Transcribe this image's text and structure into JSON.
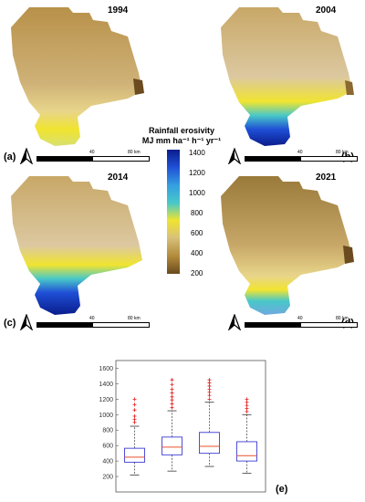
{
  "maps": [
    {
      "panel": "(a)",
      "year": "1994",
      "scale_labels": [
        "40",
        "80 km"
      ]
    },
    {
      "panel": "(b)",
      "year": "2004",
      "scale_labels": [
        "40",
        "80 km"
      ]
    },
    {
      "panel": "(c)",
      "year": "2014",
      "scale_labels": [
        "40",
        "80 km"
      ]
    },
    {
      "panel": "(d)",
      "year": "2021",
      "scale_labels": [
        "40",
        "80 km"
      ]
    }
  ],
  "legend": {
    "title_line1": "Rainfall erosivity",
    "title_line2": "MJ mm ha⁻¹ h⁻¹ yr⁻¹",
    "ticks": [
      "1400",
      "1200",
      "1000",
      "800",
      "600",
      "400",
      "200"
    ],
    "colors": [
      "#0a1c8c",
      "#1f4fd6",
      "#35a0e0",
      "#48c8c8",
      "#f0e430",
      "#d8c07a",
      "#b08a3a",
      "#6a4a1e"
    ]
  },
  "chart_data": {
    "type": "boxplot",
    "panel": "(e)",
    "ylim": [
      0,
      1700
    ],
    "yticks": [
      200,
      400,
      600,
      800,
      1000,
      1200,
      1400,
      1600
    ],
    "box_color": "#3b3bd6",
    "median_color": "#e8502a",
    "outlier_color": "#e01a1a",
    "boxes": [
      {
        "min": 220,
        "q1": 385,
        "median": 450,
        "q3": 565,
        "max": 850,
        "outliers": [
          900,
          940,
          980,
          1060,
          1130,
          1200
        ]
      },
      {
        "min": 270,
        "q1": 480,
        "median": 580,
        "q3": 710,
        "max": 1050,
        "outliers": [
          1090,
          1140,
          1190,
          1230,
          1280,
          1330,
          1390,
          1450
        ]
      },
      {
        "min": 330,
        "q1": 500,
        "median": 590,
        "q3": 770,
        "max": 1160,
        "outliers": [
          1200,
          1250,
          1290,
          1330,
          1370,
          1410,
          1450
        ]
      },
      {
        "min": 240,
        "q1": 400,
        "median": 470,
        "q3": 650,
        "max": 1000,
        "outliers": [
          1040,
          1080,
          1120,
          1160,
          1200
        ]
      }
    ]
  }
}
